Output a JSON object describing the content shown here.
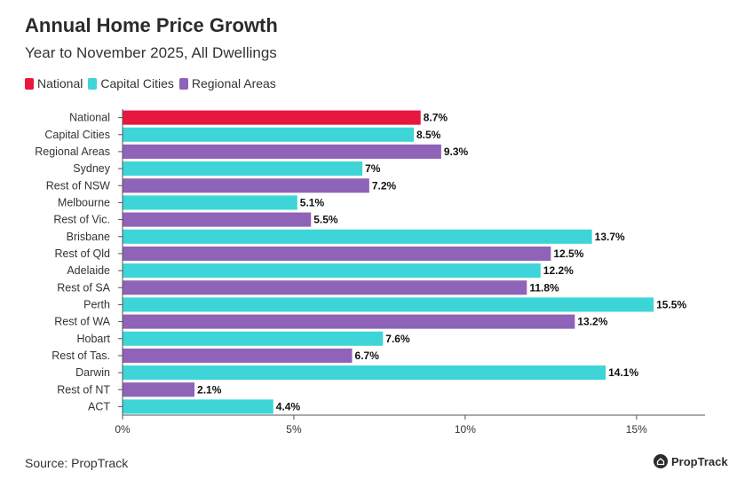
{
  "chart_data": {
    "type": "bar",
    "orientation": "horizontal",
    "title": "Annual Home Price Growth",
    "subtitle": "Year to November 2025, All Dwellings",
    "legend": [
      {
        "name": "National",
        "color": "#e8173f"
      },
      {
        "name": "Capital Cities",
        "color": "#3dd5d8"
      },
      {
        "name": "Regional Areas",
        "color": "#8f63b8"
      }
    ],
    "categories": [
      "National",
      "Capital Cities",
      "Regional Areas",
      "Sydney",
      "Rest of NSW",
      "Melbourne",
      "Rest of Vic.",
      "Brisbane",
      "Rest of Qld",
      "Adelaide",
      "Rest of SA",
      "Perth",
      "Rest of WA",
      "Hobart",
      "Rest of Tas.",
      "Darwin",
      "Rest of NT",
      "ACT"
    ],
    "values": [
      8.7,
      8.5,
      9.3,
      7,
      7.2,
      5.1,
      5.5,
      13.7,
      12.5,
      12.2,
      11.8,
      15.5,
      13.2,
      7.6,
      6.7,
      14.1,
      2.1,
      4.4
    ],
    "value_labels": [
      "8.7%",
      "8.5%",
      "9.3%",
      "7%",
      "7.2%",
      "5.1%",
      "5.5%",
      "13.7%",
      "12.5%",
      "12.2%",
      "11.8%",
      "15.5%",
      "13.2%",
      "7.6%",
      "6.7%",
      "14.1%",
      "2.1%",
      "4.4%"
    ],
    "groups": [
      "National",
      "Capital Cities",
      "Regional Areas",
      "Capital Cities",
      "Regional Areas",
      "Capital Cities",
      "Regional Areas",
      "Capital Cities",
      "Regional Areas",
      "Capital Cities",
      "Regional Areas",
      "Capital Cities",
      "Regional Areas",
      "Capital Cities",
      "Regional Areas",
      "Capital Cities",
      "Regional Areas",
      "Capital Cities"
    ],
    "xlim": [
      0,
      17
    ],
    "xticks": [
      0,
      5,
      10,
      15
    ],
    "xtick_labels": [
      "0%",
      "5%",
      "10%",
      "15%"
    ],
    "xlabel": "",
    "ylabel": "",
    "grid": false
  },
  "footer": {
    "source": "Source: PropTrack",
    "logo_text": "PropTrack"
  }
}
